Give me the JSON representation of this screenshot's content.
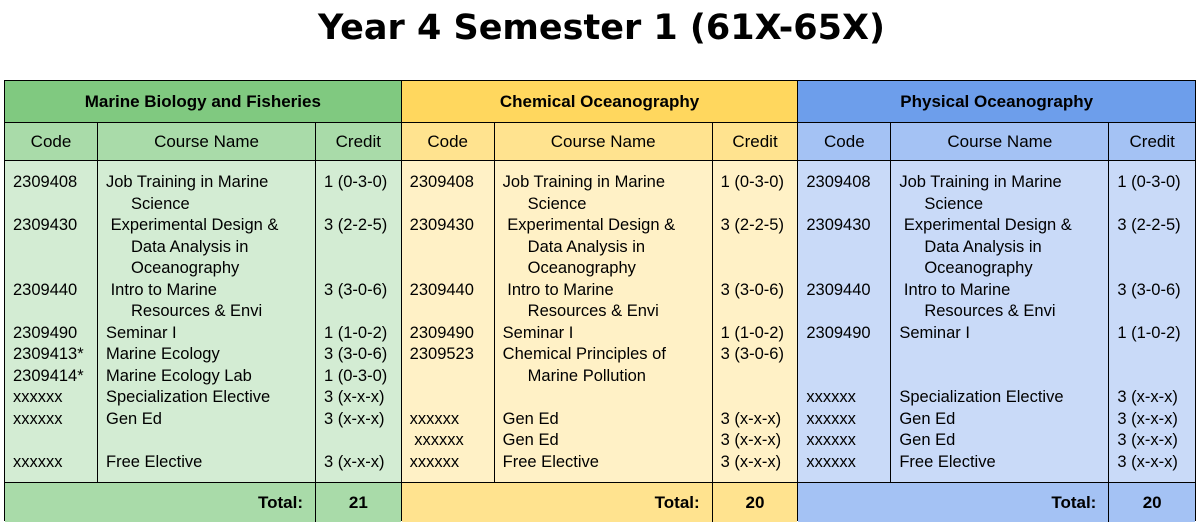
{
  "title": "Year 4 Semester 1 (61X-65X)",
  "headers": {
    "code": "Code",
    "name": "Course Name",
    "credit": "Credit"
  },
  "total_label": "Total:",
  "sections": [
    {
      "name": "Marine Biology and Fisheries",
      "colors": {
        "header": "#80c980",
        "sub": "#a9dba9",
        "body": "#d3ecd3"
      },
      "total": "21",
      "rows": [
        {
          "code": "2309408",
          "name": [
            "Job Training in Marine",
            "Science"
          ],
          "credit": "1 (0-3-0)"
        },
        {
          "code": "2309430",
          "name": [
            " Experimental Design &",
            "Data Analysis in",
            "Oceanography"
          ],
          "credit": "3 (2-2-5)"
        },
        {
          "code": "2309440",
          "name": [
            " Intro to Marine",
            "Resources & Envi"
          ],
          "credit": "3 (3-0-6)"
        },
        {
          "code": "2309490",
          "name": [
            "Seminar I"
          ],
          "credit": "1 (1-0-2)"
        },
        {
          "code": "2309413*",
          "name": [
            "Marine Ecology"
          ],
          "credit": "3 (3-0-6)"
        },
        {
          "code": "2309414*",
          "name": [
            "Marine Ecology Lab"
          ],
          "credit": "1 (0-3-0)"
        },
        {
          "code": "xxxxxx",
          "name": [
            "Specialization Elective"
          ],
          "credit": "3 (x-x-x)"
        },
        {
          "code": "xxxxxx",
          "name": [
            "Gen Ed"
          ],
          "credit": "3 (x-x-x)"
        },
        {
          "code": "",
          "name": [
            ""
          ],
          "credit": ""
        },
        {
          "code": "xxxxxx",
          "name": [
            "Free Elective"
          ],
          "credit": "3 (x-x-x)"
        }
      ]
    },
    {
      "name": "Chemical Oceanography",
      "colors": {
        "header": "#ffd75e",
        "sub": "#ffe38f",
        "body": "#fff1c6"
      },
      "total": "20",
      "rows": [
        {
          "code": "2309408",
          "name": [
            "Job Training in Marine",
            "Science"
          ],
          "credit": "1 (0-3-0)"
        },
        {
          "code": "2309430",
          "name": [
            " Experimental Design &",
            "Data Analysis in",
            "Oceanography"
          ],
          "credit": "3 (2-2-5)"
        },
        {
          "code": "2309440",
          "name": [
            " Intro to Marine",
            "Resources & Envi"
          ],
          "credit": "3 (3-0-6)"
        },
        {
          "code": "2309490",
          "name": [
            "Seminar I"
          ],
          "credit": "1 (1-0-2)"
        },
        {
          "code": "2309523",
          "name": [
            "Chemical Principles of",
            "Marine Pollution"
          ],
          "credit": "3 (3-0-6)"
        },
        {
          "code": "",
          "name": [
            ""
          ],
          "credit": ""
        },
        {
          "code": "xxxxxx",
          "name": [
            "Gen Ed"
          ],
          "credit": "3 (x-x-x)"
        },
        {
          "code": " xxxxxx",
          "name": [
            "Gen Ed"
          ],
          "credit": "3 (x-x-x)"
        },
        {
          "code": "xxxxxx",
          "name": [
            "Free Elective"
          ],
          "credit": "3 (x-x-x)"
        }
      ]
    },
    {
      "name": "Physical Oceanography",
      "colors": {
        "header": "#6d9eeb",
        "sub": "#a4c2f4",
        "body": "#c9daf8"
      },
      "total": "20",
      "rows": [
        {
          "code": "2309408",
          "name": [
            "Job Training in Marine",
            "Science"
          ],
          "credit": "1 (0-3-0)"
        },
        {
          "code": "2309430",
          "name": [
            " Experimental Design &",
            "Data Analysis in",
            "Oceanography"
          ],
          "credit": "3 (2-2-5)"
        },
        {
          "code": "2309440",
          "name": [
            " Intro to Marine",
            "Resources & Envi"
          ],
          "credit": "3 (3-0-6)"
        },
        {
          "code": "2309490",
          "name": [
            "Seminar I"
          ],
          "credit": "1 (1-0-2)"
        },
        {
          "code": "",
          "name": [
            ""
          ],
          "credit": ""
        },
        {
          "code": "",
          "name": [
            ""
          ],
          "credit": ""
        },
        {
          "code": "xxxxxx",
          "name": [
            "Specialization Elective"
          ],
          "credit": "3 (x-x-x)"
        },
        {
          "code": "xxxxxx",
          "name": [
            "Gen Ed"
          ],
          "credit": "3 (x-x-x)"
        },
        {
          "code": "xxxxxx",
          "name": [
            "Gen Ed"
          ],
          "credit": "3 (x-x-x)"
        },
        {
          "code": "xxxxxx",
          "name": [
            "Free Elective"
          ],
          "credit": "3 (x-x-x)"
        }
      ]
    }
  ]
}
